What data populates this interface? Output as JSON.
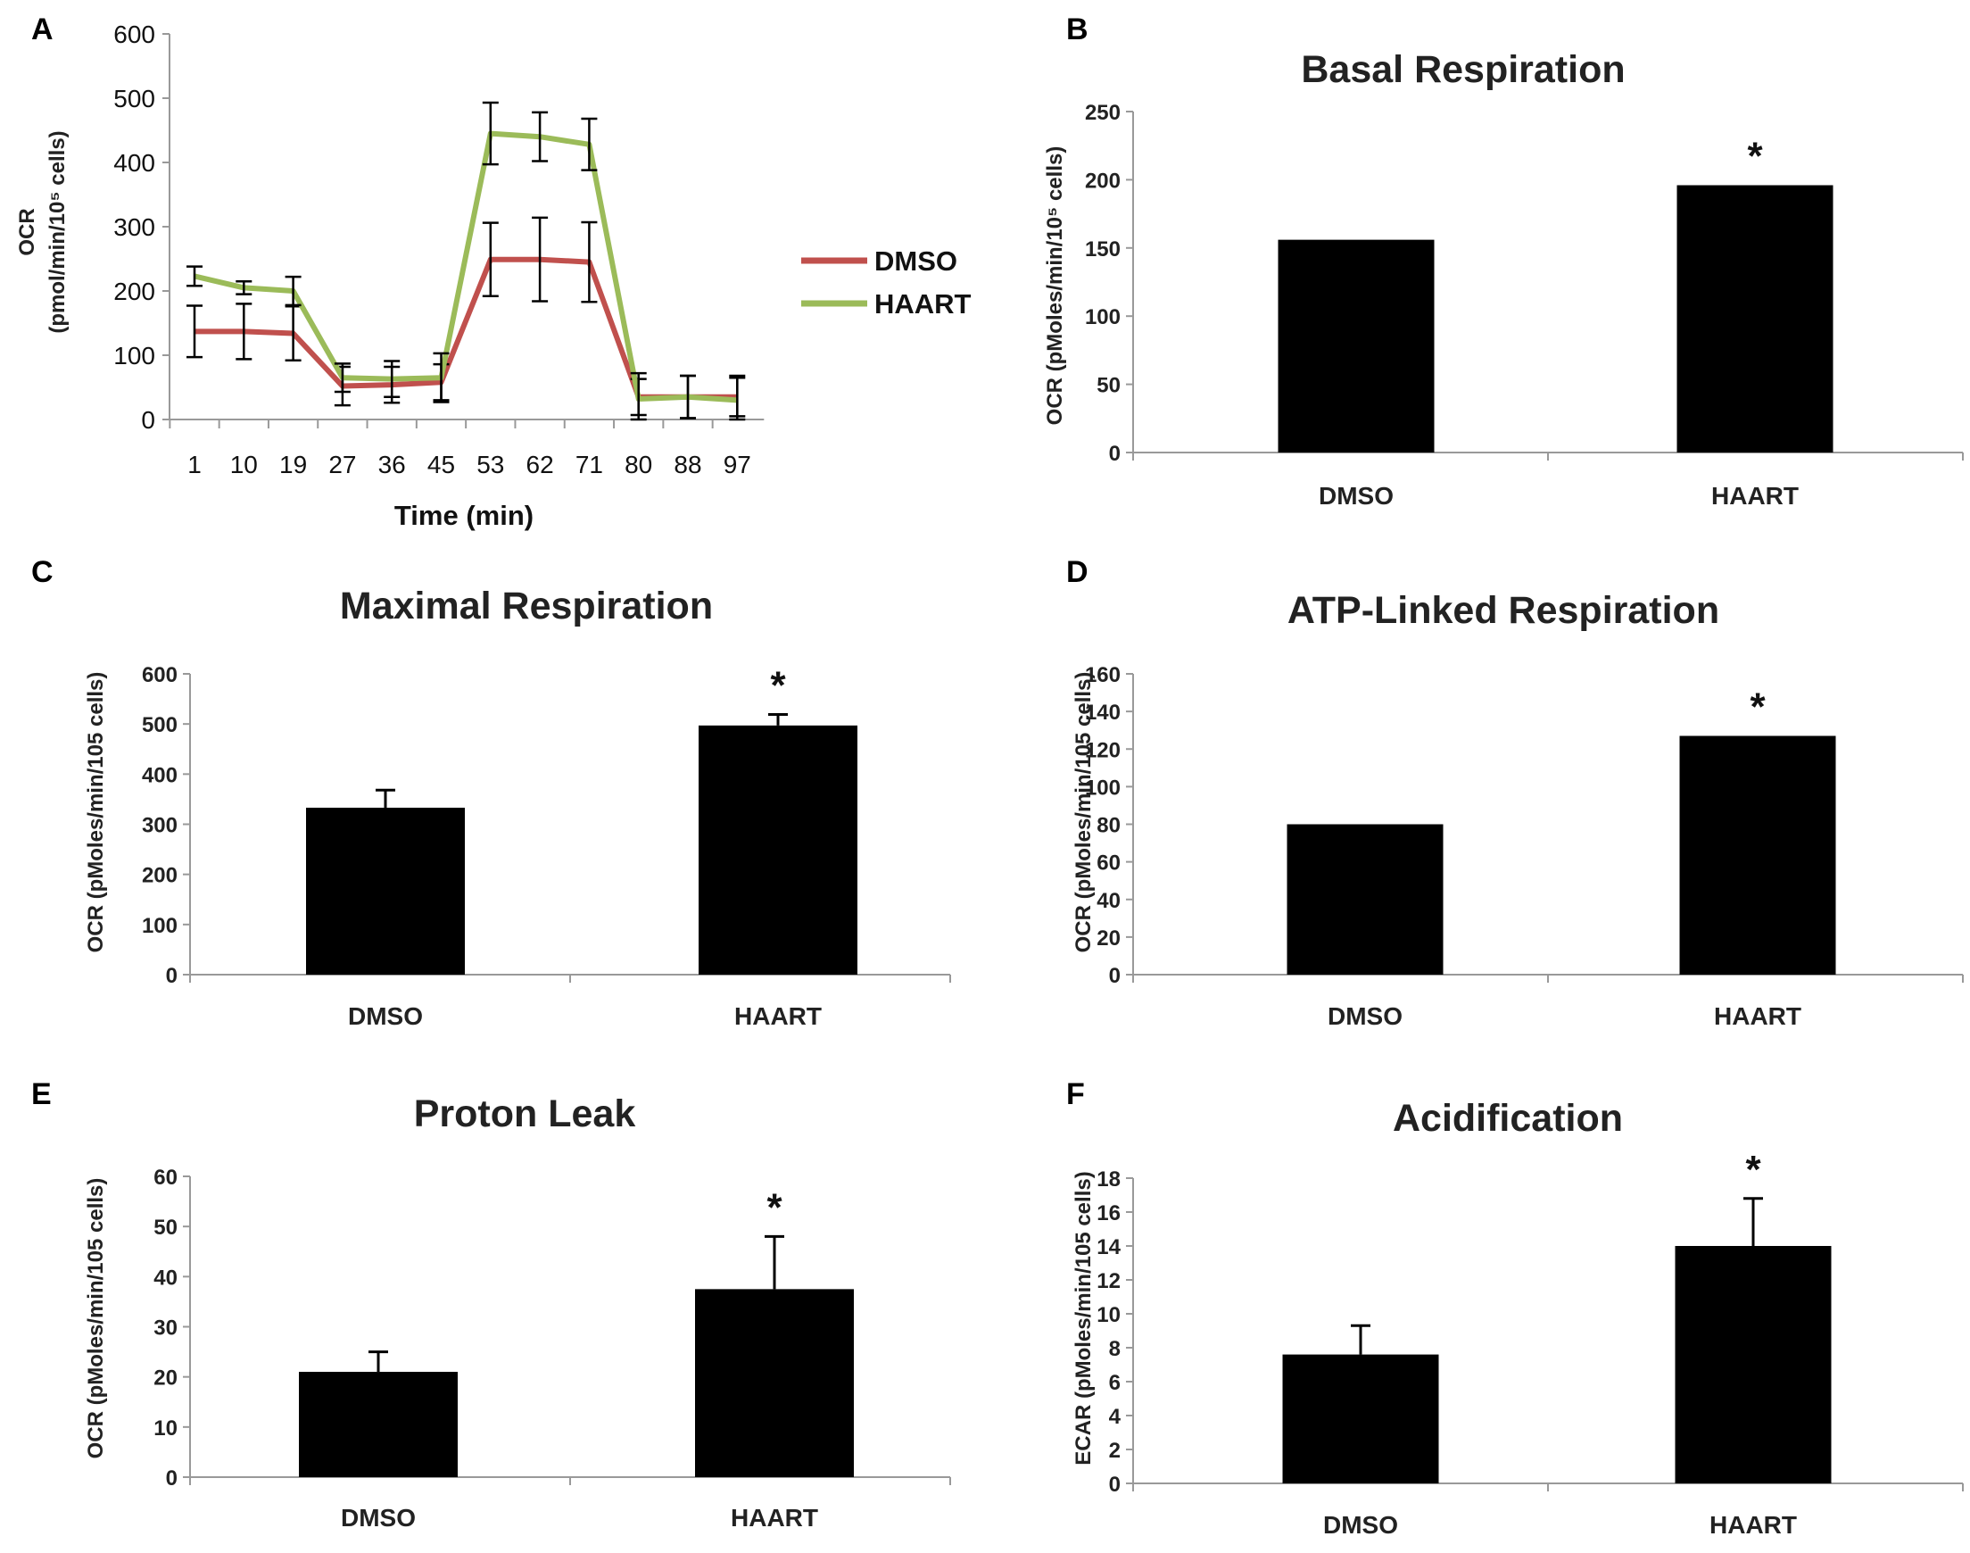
{
  "chart_data": [
    {
      "panel": "A",
      "type": "line",
      "title": "",
      "xlabel": "Time (min)",
      "ylabel_line1": "OCR",
      "ylabel_line2": "(pmol/min/10⁵ cells)",
      "x": [
        "1",
        "10",
        "19",
        "27",
        "36",
        "45",
        "53",
        "62",
        "71",
        "80",
        "88",
        "97"
      ],
      "ylim": [
        0,
        600
      ],
      "yticks": [
        "0",
        "100",
        "200",
        "300",
        "400",
        "500",
        "600"
      ],
      "series": [
        {
          "name": "DMSO",
          "color": "#c0504d",
          "values": [
            137,
            137,
            134,
            52,
            54,
            58,
            249,
            249,
            245,
            35,
            35,
            35
          ],
          "errors": [
            40,
            43,
            42,
            30,
            28,
            28,
            57,
            65,
            62,
            28,
            33,
            30
          ]
        },
        {
          "name": "HAART",
          "color": "#9bbb59",
          "values": [
            223,
            205,
            200,
            65,
            63,
            65,
            445,
            440,
            428,
            32,
            35,
            30
          ],
          "errors": [
            15,
            10,
            22,
            22,
            28,
            38,
            48,
            38,
            40,
            40,
            33,
            38
          ]
        }
      ]
    },
    {
      "panel": "B",
      "type": "bar",
      "title": "Basal Respiration",
      "ylabel": "OCR (pMoles/min/10⁵ cells)",
      "categories": [
        "DMSO",
        "HAART"
      ],
      "values": [
        156,
        196
      ],
      "errors": [
        0,
        0
      ],
      "significance": [
        "",
        "*"
      ],
      "ylim": [
        0,
        250
      ],
      "yticks": [
        "0",
        "50",
        "100",
        "150",
        "200",
        "250"
      ]
    },
    {
      "panel": "C",
      "type": "bar",
      "title": "Maximal Respiration",
      "ylabel": "OCR (pMoles/min/105 cells)",
      "categories": [
        "DMSO",
        "HAART"
      ],
      "values": [
        333,
        497
      ],
      "errors": [
        35,
        22
      ],
      "significance": [
        "",
        "*"
      ],
      "ylim": [
        0,
        600
      ],
      "yticks": [
        "0",
        "100",
        "200",
        "300",
        "400",
        "500",
        "600"
      ]
    },
    {
      "panel": "D",
      "type": "bar",
      "title": "ATP-Linked Respiration",
      "ylabel": "OCR (pMoles/min/105 cells)",
      "categories": [
        "DMSO",
        "HAART"
      ],
      "values": [
        80,
        127
      ],
      "errors": [
        0,
        0
      ],
      "significance": [
        "",
        "*"
      ],
      "ylim": [
        0,
        160
      ],
      "yticks": [
        "0",
        "20",
        "40",
        "60",
        "80",
        "100",
        "120",
        "140",
        "160"
      ]
    },
    {
      "panel": "E",
      "type": "bar",
      "title": "Proton Leak",
      "ylabel": "OCR (pMoles/min/105 cells)",
      "categories": [
        "DMSO",
        "HAART"
      ],
      "values": [
        21,
        37.5
      ],
      "errors": [
        4,
        10.5
      ],
      "significance": [
        "",
        "*"
      ],
      "ylim": [
        0,
        60
      ],
      "yticks": [
        "0",
        "10",
        "20",
        "30",
        "40",
        "50",
        "60"
      ]
    },
    {
      "panel": "F",
      "type": "bar",
      "title": "Acidification",
      "ylabel": "ECAR (pMoles/min/105 cells)",
      "categories": [
        "DMSO",
        "HAART"
      ],
      "values": [
        7.6,
        14
      ],
      "errors": [
        1.7,
        2.8
      ],
      "significance": [
        "",
        "*"
      ],
      "ylim": [
        0,
        18
      ],
      "yticks": [
        "0",
        "2",
        "4",
        "6",
        "8",
        "10",
        "12",
        "14",
        "16",
        "18"
      ]
    }
  ]
}
